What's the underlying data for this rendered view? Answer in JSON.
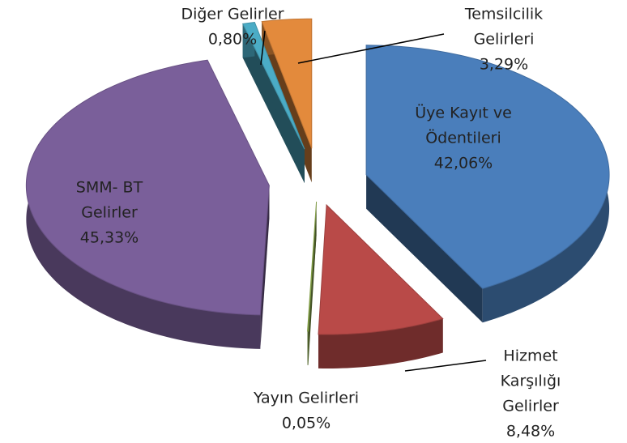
{
  "chart_data": {
    "type": "pie",
    "categories": [
      [
        "Üye Kayıt ve",
        "Ödentileri"
      ],
      [
        "Hizmet",
        "Karşılığı",
        "Gelirler"
      ],
      [
        "Yayın Gelirleri"
      ],
      [
        "SMM- BT",
        "Gelirler"
      ],
      [
        "Diğer Gelirler"
      ],
      [
        "Temsilcilik",
        "Gelirleri"
      ]
    ],
    "values": [
      42.06,
      8.48,
      0.05,
      45.33,
      0.8,
      3.29
    ],
    "value_labels": [
      "42,06%",
      "8,48%",
      "0,05%",
      "45,33%",
      "0,80%",
      "3,29%"
    ],
    "colors": [
      "#4a7ebb",
      "#b94a48",
      "#98b954",
      "#7a5f9a",
      "#4bacc6",
      "#e38a3c"
    ]
  }
}
